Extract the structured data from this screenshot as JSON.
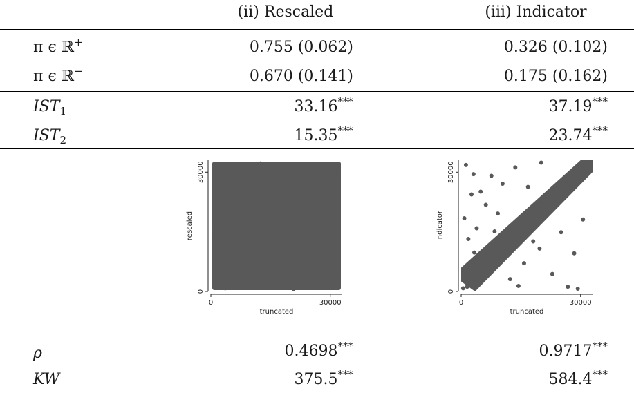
{
  "header": {
    "col_ii": "(ii) Rescaled",
    "col_iii": "(iii) Indicator"
  },
  "rows_pi": [
    {
      "label_base": "π ϵ ℝ",
      "label_sup": "+",
      "ii": "0.755 (0.062)",
      "iii": "0.326 (0.102)"
    },
    {
      "label_base": "π ϵ ℝ",
      "label_sup": "−",
      "ii": "0.670 (0.141)",
      "iii": "0.175 (0.162)"
    }
  ],
  "rows_ist": [
    {
      "label_base": "IST",
      "label_sub": "1",
      "ii": "33.16",
      "ii_stars": "***",
      "iii": "37.19",
      "iii_stars": "***"
    },
    {
      "label_base": "IST",
      "label_sub": "2",
      "ii": "15.35",
      "ii_stars": "***",
      "iii": "23.74",
      "iii_stars": "***"
    }
  ],
  "rows_stats": [
    {
      "label": "ρ",
      "ii": "0.4698",
      "ii_stars": "***",
      "iii": "0.9717",
      "iii_stars": "***"
    },
    {
      "label": "KW",
      "ii": "375.5",
      "ii_stars": "***",
      "iii": "584.4",
      "iii_stars": "***"
    }
  ],
  "chart_data": [
    {
      "type": "scatter",
      "xlabel": "truncated",
      "ylabel": "rescaled",
      "x_ticks": [
        "0",
        "30000"
      ],
      "y_ticks": [
        "0",
        "30000"
      ],
      "xlim": [
        0,
        33000
      ],
      "ylim": [
        0,
        33000
      ],
      "point_color": "#595959",
      "pattern": "uniform dense cloud filling the whole square",
      "points": [
        [
          1200,
          31500
        ],
        [
          5400,
          28300
        ],
        [
          9800,
          30100
        ],
        [
          14200,
          26700
        ],
        [
          18500,
          31900
        ],
        [
          22700,
          27400
        ],
        [
          27100,
          30600
        ],
        [
          31200,
          29200
        ],
        [
          2500,
          22300
        ],
        [
          6900,
          19800
        ],
        [
          11300,
          24100
        ],
        [
          15600,
          21500
        ],
        [
          19900,
          23300
        ],
        [
          24100,
          18700
        ],
        [
          28600,
          22800
        ],
        [
          32100,
          20500
        ],
        [
          800,
          14500
        ],
        [
          4300,
          11200
        ],
        [
          8700,
          15800
        ],
        [
          13000,
          12400
        ],
        [
          17400,
          14900
        ],
        [
          21800,
          10600
        ],
        [
          26000,
          13700
        ],
        [
          30500,
          11900
        ],
        [
          1900,
          5600
        ],
        [
          6200,
          2800
        ],
        [
          10600,
          7300
        ],
        [
          14900,
          4100
        ],
        [
          19300,
          6400
        ],
        [
          23600,
          1900
        ],
        [
          27900,
          5200
        ],
        [
          31700,
          3300
        ],
        [
          3600,
          800
        ],
        [
          12500,
          32200
        ],
        [
          20800,
          600
        ],
        [
          29800,
          16800
        ]
      ]
    },
    {
      "type": "scatter",
      "xlabel": "truncated",
      "ylabel": "indicator",
      "x_ticks": [
        "0",
        "30000"
      ],
      "y_ticks": [
        "0",
        "30000"
      ],
      "xlim": [
        0,
        33000
      ],
      "ylim": [
        0,
        33000
      ],
      "point_color": "#595959",
      "pattern": "dense band along the diagonal with scattered outliers",
      "points": [
        [
          500,
          800
        ],
        [
          1500,
          1200
        ],
        [
          2500,
          2900
        ],
        [
          3500,
          3100
        ],
        [
          4500,
          5200
        ],
        [
          5500,
          5300
        ],
        [
          6500,
          6900
        ],
        [
          7500,
          7200
        ],
        [
          8500,
          8800
        ],
        [
          9500,
          9300
        ],
        [
          10500,
          10900
        ],
        [
          11500,
          11200
        ],
        [
          12500,
          12800
        ],
        [
          13500,
          13300
        ],
        [
          14500,
          14900
        ],
        [
          15500,
          15200
        ],
        [
          16500,
          16800
        ],
        [
          17500,
          17300
        ],
        [
          18500,
          18900
        ],
        [
          19500,
          19200
        ],
        [
          20500,
          20800
        ],
        [
          21500,
          21300
        ],
        [
          22500,
          22900
        ],
        [
          23500,
          23200
        ],
        [
          24500,
          24800
        ],
        [
          25500,
          25300
        ],
        [
          26500,
          26900
        ],
        [
          27500,
          27200
        ],
        [
          28500,
          28800
        ],
        [
          29500,
          29300
        ],
        [
          30500,
          30800
        ],
        [
          31500,
          31300
        ],
        [
          32200,
          32300
        ],
        [
          1200,
          31800
        ],
        [
          3100,
          29500
        ],
        [
          2600,
          24400
        ],
        [
          800,
          18400
        ],
        [
          4900,
          25100
        ],
        [
          1800,
          13200
        ],
        [
          6200,
          21800
        ],
        [
          3900,
          15900
        ],
        [
          7600,
          29100
        ],
        [
          10400,
          27100
        ],
        [
          13600,
          31200
        ],
        [
          9200,
          19600
        ],
        [
          16800,
          26300
        ],
        [
          20100,
          32400
        ],
        [
          3300,
          9800
        ],
        [
          12300,
          3100
        ],
        [
          15800,
          7100
        ],
        [
          19700,
          10800
        ],
        [
          22900,
          4400
        ],
        [
          25100,
          14900
        ],
        [
          28400,
          9600
        ],
        [
          30600,
          18100
        ],
        [
          26800,
          1200
        ],
        [
          29300,
          700
        ],
        [
          14400,
          1400
        ],
        [
          23400,
          24100
        ],
        [
          8400,
          15100
        ],
        [
          18100,
          12600
        ]
      ]
    }
  ]
}
